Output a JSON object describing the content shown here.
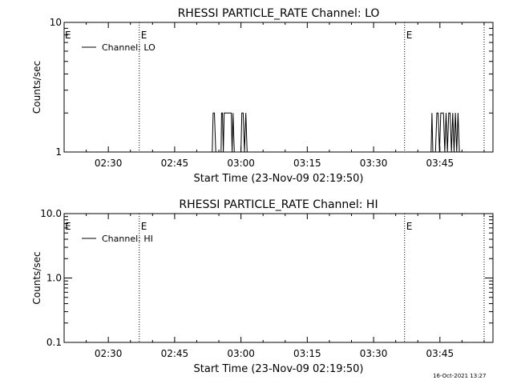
{
  "footer": {
    "timestamp": "16-Oct-2021 13:27"
  },
  "chart_data": [
    {
      "type": "line",
      "title": "RHESSI PARTICLE_RATE Channel: LO",
      "xlabel": "Start Time (23-Nov-09 02:19:50)",
      "ylabel": "Counts/sec",
      "y_scale": "log",
      "ylim": [
        1,
        10
      ],
      "y_ticks": [
        {
          "value": 1,
          "label": "1"
        },
        {
          "value": 10,
          "label": "10"
        }
      ],
      "x_ticks": [
        "02:30",
        "02:45",
        "03:00",
        "03:15",
        "03:30",
        "03:45"
      ],
      "xlim_minutes_after_0220": [
        0,
        97
      ],
      "x_tick_values": [
        10,
        25,
        40,
        55,
        70,
        85
      ],
      "legend": {
        "label": "Channel: LO",
        "position": "top-left"
      },
      "event_lines": [
        {
          "x": 17,
          "label": "E"
        },
        {
          "x": 77,
          "label": "E"
        },
        {
          "x": 95,
          "label": ""
        }
      ],
      "edge_marker": "E",
      "series": [
        {
          "name": "Channel: LO",
          "x": [
            32,
            33.5,
            33.7,
            34,
            34.3,
            35.5,
            35.6,
            35.8,
            36,
            36.2,
            36.4,
            36.6,
            37.8,
            38.0,
            38.2,
            38.5,
            40,
            40.2,
            40.5,
            40.8,
            41.1,
            41.4,
            42,
            83,
            83.2,
            83.4,
            84,
            84.3,
            84.6,
            84.9,
            85.2,
            85.5,
            85.8,
            86.1,
            86.4,
            86.7,
            87,
            87.3,
            87.6,
            87.9,
            88.2,
            88.5,
            88.8,
            89.1,
            89.4
          ],
          "y": [
            1,
            1,
            2,
            2,
            1,
            1,
            2,
            2,
            1,
            2,
            2,
            2,
            2,
            1,
            2,
            1,
            1,
            2,
            2,
            1,
            2,
            1,
            1,
            1,
            2,
            1,
            1,
            2,
            2,
            1,
            2,
            2,
            2,
            1,
            2,
            1,
            2,
            2,
            1,
            2,
            1,
            2,
            1,
            2,
            1
          ]
        }
      ]
    },
    {
      "type": "line",
      "title": "RHESSI PARTICLE_RATE Channel: HI",
      "xlabel": "Start Time (23-Nov-09 02:19:50)",
      "ylabel": "Counts/sec",
      "y_scale": "log",
      "ylim": [
        0.1,
        10
      ],
      "y_ticks": [
        {
          "value": 0.1,
          "label": "0.1"
        },
        {
          "value": 1,
          "label": "1.0"
        },
        {
          "value": 10,
          "label": "10.0"
        }
      ],
      "x_ticks": [
        "02:30",
        "02:45",
        "03:00",
        "03:15",
        "03:30",
        "03:45"
      ],
      "xlim_minutes_after_0220": [
        0,
        97
      ],
      "x_tick_values": [
        10,
        25,
        40,
        55,
        70,
        85
      ],
      "legend": {
        "label": "Channel: HI",
        "position": "top-left"
      },
      "event_lines": [
        {
          "x": 17,
          "label": "E"
        },
        {
          "x": 77,
          "label": "E"
        },
        {
          "x": 95,
          "label": ""
        }
      ],
      "edge_marker": "E",
      "series": [
        {
          "name": "Channel: HI",
          "x": [],
          "y": []
        }
      ]
    }
  ]
}
